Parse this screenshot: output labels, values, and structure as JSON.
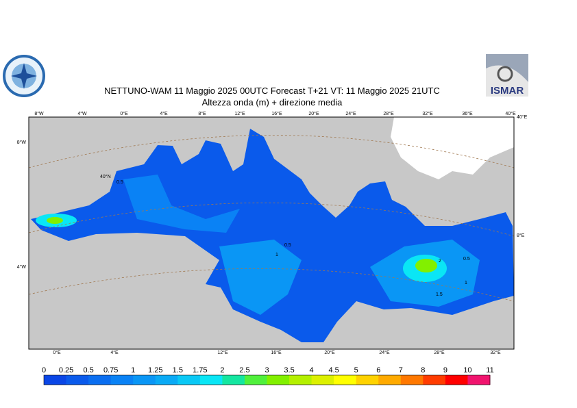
{
  "header": {
    "title": "NETTUNO-WAM  11   Maggio  2025 00UTC Forecast T+21 VT: 11   Maggio  2025 21UTC",
    "subtitle": "Altezza onda (m) + direzione media",
    "logo_text": "ISMAR"
  },
  "map": {
    "top_labels": [
      "8°W",
      "4°W",
      "0°E",
      "4°E",
      "8°E",
      "12°E",
      "16°E",
      "20°E",
      "24°E",
      "28°E",
      "32°E",
      "36°E",
      "40°E"
    ],
    "bottom_labels": [
      "0°E",
      "4°E",
      "12°E",
      "16°E",
      "20°E",
      "24°E",
      "28°E",
      "32°E"
    ],
    "left_labels": [
      "8°W",
      "4°W"
    ],
    "right_labels": [
      "40°E",
      "8°E"
    ],
    "lat_label": "40°N",
    "contour_labels": [
      "0.5",
      "0.5",
      "1",
      "0.5",
      "2",
      "1",
      "1.5"
    ]
  },
  "colorbar": {
    "labels": [
      0,
      0.25,
      0.5,
      0.75,
      1,
      1.25,
      1.5,
      1.75,
      2,
      2.5,
      3,
      3.5,
      4,
      4.5,
      5,
      6,
      7,
      8,
      9,
      10,
      11
    ],
    "colors": [
      "#0a46e6",
      "#0a5aeb",
      "#0a6ef0",
      "#0a82f5",
      "#0a96f5",
      "#0aaaf5",
      "#0ac8f5",
      "#0ae6f5",
      "#14e6a0",
      "#50f03c",
      "#82f000",
      "#b4f000",
      "#dcf000",
      "#ffff00",
      "#ffd200",
      "#ffaa00",
      "#ff7800",
      "#ff3c00",
      "#ff0000",
      "#f0146e",
      "#ff14d2"
    ]
  }
}
